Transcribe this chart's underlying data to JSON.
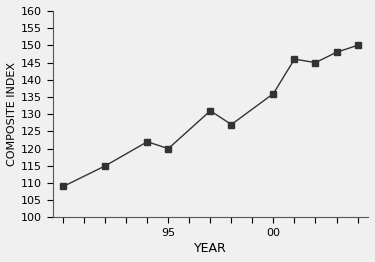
{
  "years": [
    1990,
    1992,
    1994,
    1995,
    1997,
    1998,
    2000,
    2001,
    2002,
    2003,
    2004
  ],
  "values": [
    109,
    115,
    122,
    120,
    131,
    127,
    136,
    146,
    145,
    148,
    150
  ],
  "xlim": [
    1989.5,
    2004.5
  ],
  "ylim": [
    100,
    160
  ],
  "all_xticks": [
    1990,
    1991,
    1992,
    1993,
    1994,
    1995,
    1996,
    1997,
    1998,
    1999,
    2000,
    2001,
    2002,
    2003,
    2004
  ],
  "labeled_xticks": {
    "1995": "95",
    "2000": "00"
  },
  "yticks": [
    100,
    105,
    110,
    115,
    120,
    125,
    130,
    135,
    140,
    145,
    150,
    155,
    160
  ],
  "xlabel": "YEAR",
  "ylabel": "COMPOSITE INDEX",
  "line_color": "#333333",
  "marker": "s",
  "marker_color": "#333333",
  "marker_size": 5,
  "background_color": "#f0f0f0",
  "axes_background": "#f0f0f0"
}
